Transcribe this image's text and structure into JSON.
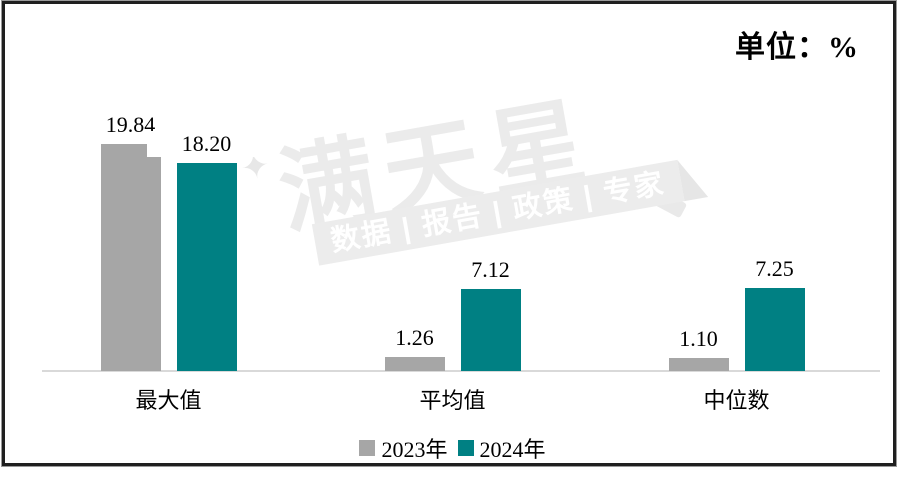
{
  "unit_label": "单位：%",
  "watermark": {
    "sparkle_icon": "✦",
    "brand": "满天星",
    "tagline": "数据 | 报告 | 政策 | 专家"
  },
  "chart_data": {
    "type": "bar",
    "title": "",
    "unit": "单位：%",
    "categories": [
      "最大值",
      "平均值",
      "中位数"
    ],
    "series": [
      {
        "name": "2023年",
        "color": "#a6a6a6",
        "values": [
          19.84,
          1.26,
          1.1
        ],
        "value_labels": [
          "19.84",
          "1.26",
          "1.10"
        ]
      },
      {
        "name": "2024年",
        "color": "#008083",
        "values": [
          18.2,
          7.12,
          7.25
        ],
        "value_labels": [
          "18.20",
          "7.12",
          "7.25"
        ]
      }
    ],
    "ylim": [
      0,
      20
    ],
    "grid": false,
    "y_axis_visible": false,
    "legend_position": "bottom",
    "value_labels_shown": true
  },
  "colors": {
    "bar_2023": "#a6a6a6",
    "bar_2024": "#008083",
    "axis_line": "#d9d9d9",
    "frame_border": "#1f1f1f",
    "watermark_gray": "#ebebeb",
    "watermark_band_bg": "#ececec",
    "watermark_band_text": "#ffffff",
    "label_text": "#000000"
  }
}
